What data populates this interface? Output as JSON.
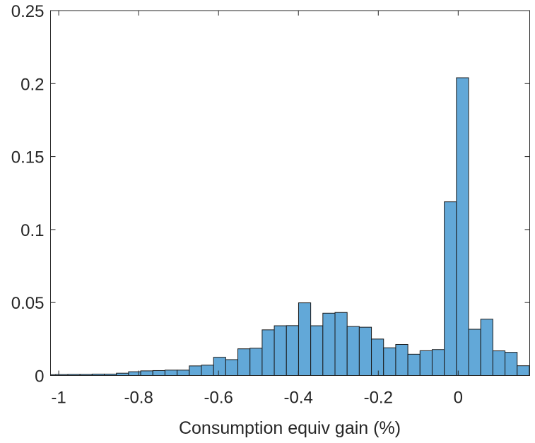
{
  "chart_data": {
    "type": "bar",
    "subtype": "histogram",
    "title": "",
    "xlabel": "Consumption equiv gain (%)",
    "ylabel": "",
    "xlim": [
      -1.0205,
      0.179
    ],
    "ylim": [
      0,
      0.25
    ],
    "xticks": [
      -1,
      -0.8,
      -0.6,
      -0.4,
      -0.2,
      0
    ],
    "xtick_labels": [
      "-1",
      "-0.8",
      "-0.6",
      "-0.4",
      "-0.2",
      "0"
    ],
    "yticks": [
      0,
      0.05,
      0.1,
      0.15,
      0.2,
      0.25
    ],
    "ytick_labels": [
      "0",
      "0.05",
      "0.1",
      "0.15",
      "0.2",
      "0.25"
    ],
    "grid": false,
    "bin_first_edge": -1.038,
    "bin_width": 0.0304,
    "values": [
      0.0006,
      0.0007,
      0.0008,
      0.0008,
      0.001,
      0.001,
      0.0016,
      0.0026,
      0.0032,
      0.0034,
      0.0037,
      0.0037,
      0.0066,
      0.0071,
      0.0125,
      0.0109,
      0.0183,
      0.0187,
      0.0313,
      0.0341,
      0.0342,
      0.0498,
      0.0341,
      0.0427,
      0.0432,
      0.0336,
      0.0331,
      0.025,
      0.019,
      0.0213,
      0.0146,
      0.017,
      0.0178,
      0.119,
      0.204,
      0.0317,
      0.0386,
      0.0169,
      0.0159,
      0.0067
    ],
    "colors": {
      "bar_fill": "#62a8d8",
      "bar_edge": "#1a1a1a",
      "axis": "#262626"
    }
  }
}
